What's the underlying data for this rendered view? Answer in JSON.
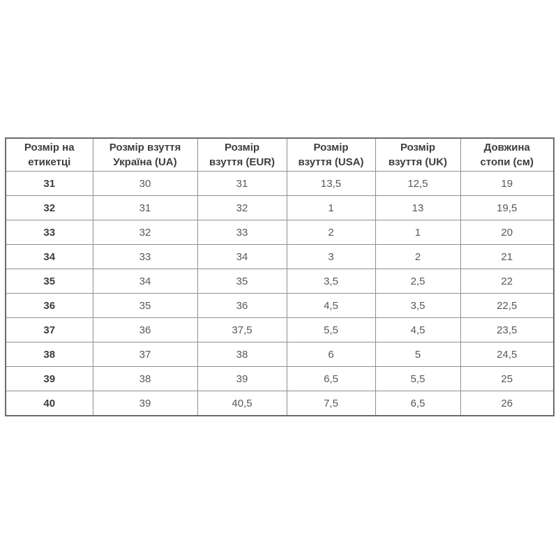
{
  "colors": {
    "page_background": "#ffffff",
    "table_border_outer": "#6b6b6b",
    "table_border_inner": "#8f8f8f",
    "header_text": "#3d3d3d",
    "cell_text": "#58585a"
  },
  "chart_data": {
    "type": "table",
    "title": "",
    "columns": [
      "Розмір на етикетці",
      "Розмір взуття Україна (UA)",
      "Розмір взуття (EUR)",
      "Розмір взуття (USA)",
      "Розмір взуття (UK)",
      "Довжина стопи (см)"
    ],
    "rows": [
      [
        "31",
        "30",
        "31",
        "13,5",
        "12,5",
        "19"
      ],
      [
        "32",
        "31",
        "32",
        "1",
        "13",
        "19,5"
      ],
      [
        "33",
        "32",
        "33",
        "2",
        "1",
        "20"
      ],
      [
        "34",
        "33",
        "34",
        "3",
        "2",
        "21"
      ],
      [
        "35",
        "34",
        "35",
        "3,5",
        "2,5",
        "22"
      ],
      [
        "36",
        "35",
        "36",
        "4,5",
        "3,5",
        "22,5"
      ],
      [
        "37",
        "36",
        "37,5",
        "5,5",
        "4,5",
        "23,5"
      ],
      [
        "38",
        "37",
        "38",
        "6",
        "5",
        "24,5"
      ],
      [
        "39",
        "38",
        "39",
        "6,5",
        "5,5",
        "25"
      ],
      [
        "40",
        "39",
        "40,5",
        "7,5",
        "6,5",
        "26"
      ]
    ]
  }
}
